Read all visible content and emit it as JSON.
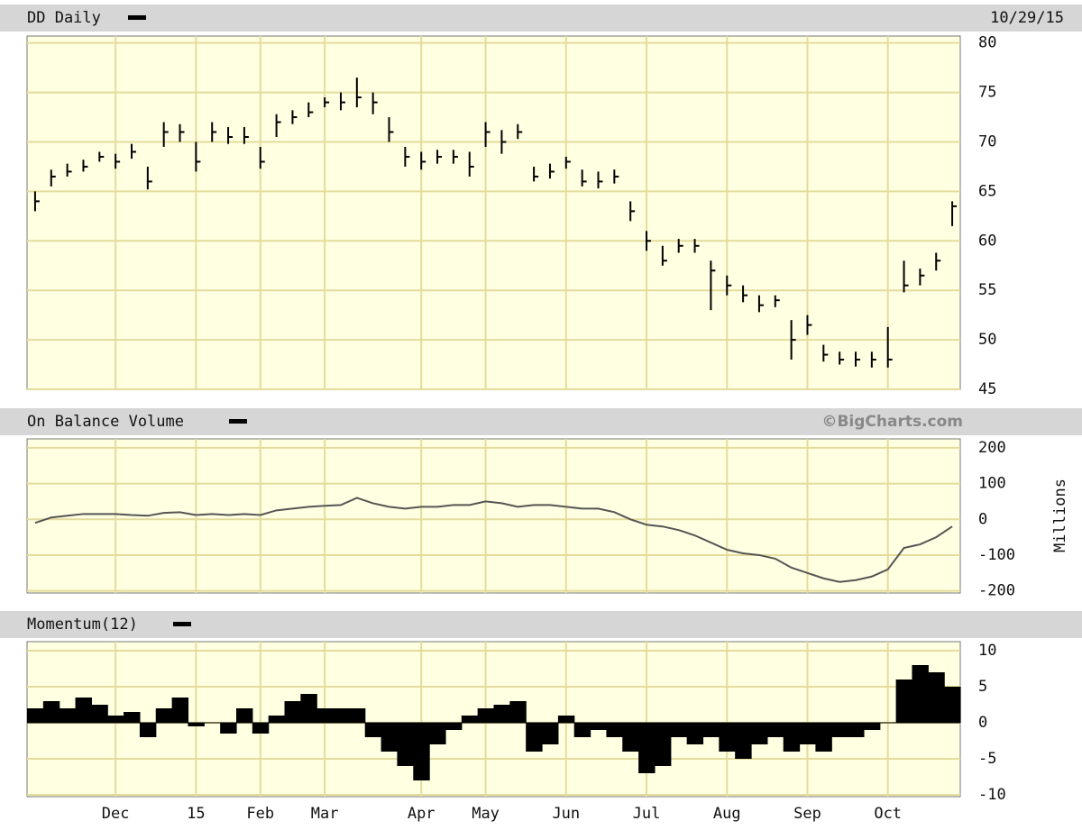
{
  "chart_data": [
    {
      "type": "ohlc",
      "title": "DD Daily",
      "date": "10/29/15",
      "color": "#000000",
      "grid": true,
      "ylim": [
        45,
        80.7
      ],
      "yticks": [
        45,
        50,
        55,
        60,
        65,
        70,
        75,
        80
      ],
      "high": [
        65,
        67.2,
        67.8,
        68.2,
        69,
        68.8,
        69.8,
        67.5,
        72,
        71.8,
        70,
        72,
        71.5,
        71.5,
        69.5,
        72.8,
        73.2,
        74,
        74.5,
        75,
        76.5,
        75,
        72.5,
        69.5,
        69,
        69.2,
        69.2,
        69,
        72,
        71.2,
        71.8,
        67.5,
        67.8,
        68.5,
        67.2,
        67,
        67.2,
        64,
        61,
        59.5,
        60.2,
        60.2,
        58,
        56.5,
        55.5,
        54.5,
        54.5,
        52,
        52.5,
        49.5,
        48.8,
        48.8,
        48.8,
        51.3,
        58,
        57.2,
        58.8,
        64
      ],
      "low": [
        63,
        65.5,
        66.5,
        67,
        68,
        67.3,
        68.3,
        65.2,
        69.5,
        70,
        67,
        70,
        69.8,
        69.8,
        67.3,
        70.5,
        71.8,
        72.5,
        73.5,
        73.2,
        73.5,
        72.8,
        70,
        67.5,
        67.2,
        67.8,
        67.8,
        66.5,
        69.5,
        68.8,
        70.3,
        66,
        66.3,
        67.3,
        65.5,
        65.3,
        65.8,
        62,
        59,
        57.5,
        58.8,
        58.8,
        53,
        54.5,
        53.8,
        52.8,
        53.3,
        48,
        50.5,
        47.8,
        47.5,
        47.3,
        47.2,
        47.2,
        54.8,
        55.5,
        57,
        61.5
      ],
      "close": [
        64,
        66.5,
        67,
        67.5,
        68.5,
        68,
        69,
        66,
        71,
        71,
        68,
        71,
        70.5,
        70.5,
        68,
        72,
        72.5,
        73,
        74,
        74,
        74.5,
        74,
        71,
        68.5,
        68,
        68.5,
        68.5,
        67.5,
        71,
        70,
        71,
        66.5,
        67,
        68,
        66,
        66,
        66.5,
        63,
        60,
        58,
        59.5,
        59.5,
        57,
        55.5,
        54.5,
        53.5,
        54,
        50,
        51.5,
        48.5,
        48,
        48,
        48,
        48,
        55.5,
        56.5,
        58,
        63.5
      ]
    },
    {
      "type": "line",
      "title": "On Balance Volume",
      "credit": "©BigCharts.com",
      "y_label": "Millions",
      "color": "#555555",
      "grid": true,
      "ylim": [
        -206,
        225
      ],
      "yticks": [
        -200,
        -100,
        0,
        100,
        200
      ],
      "values": [
        -10,
        5,
        10,
        15,
        15,
        15,
        12,
        10,
        18,
        20,
        12,
        15,
        12,
        15,
        12,
        25,
        30,
        35,
        38,
        40,
        60,
        45,
        35,
        30,
        35,
        35,
        40,
        40,
        50,
        45,
        35,
        40,
        40,
        35,
        30,
        30,
        20,
        0,
        -15,
        -20,
        -30,
        -45,
        -65,
        -85,
        -95,
        -100,
        -110,
        -135,
        -150,
        -165,
        -175,
        -170,
        -160,
        -140,
        -80,
        -70,
        -50,
        -20
      ]
    },
    {
      "type": "area",
      "title": "Momentum(12)",
      "color": "#000000",
      "grid": true,
      "ylim": [
        -10.25,
        11.25
      ],
      "yticks": [
        -10,
        -5,
        0,
        5,
        10
      ],
      "categories": [
        null,
        null,
        null,
        null,
        null,
        "Dec",
        null,
        null,
        null,
        null,
        "15",
        null,
        null,
        null,
        "Feb",
        null,
        null,
        null,
        "Mar",
        null,
        null,
        null,
        null,
        null,
        "Apr",
        null,
        null,
        null,
        "May",
        null,
        null,
        null,
        null,
        "Jun",
        null,
        null,
        null,
        null,
        "Jul",
        null,
        null,
        null,
        null,
        "Aug",
        null,
        null,
        null,
        null,
        "Sep",
        null,
        null,
        null,
        null,
        "Oct",
        null,
        null,
        null,
        null
      ],
      "values": [
        2,
        3,
        2,
        3.5,
        2.5,
        1,
        1.5,
        -2,
        2,
        3.5,
        -0.5,
        0,
        -1.5,
        2,
        -1.5,
        1,
        3,
        4,
        2,
        2,
        2,
        -2,
        -4,
        -6,
        -8,
        -3,
        -1,
        1,
        2,
        2.5,
        3,
        -4,
        -3,
        1,
        -2,
        -1,
        -2,
        -4,
        -7,
        -6,
        -2,
        -3,
        -2,
        -4,
        -5,
        -3,
        -2,
        -4,
        -3,
        -4,
        -2,
        -2,
        -1,
        0,
        6,
        8,
        7,
        5
      ]
    }
  ]
}
